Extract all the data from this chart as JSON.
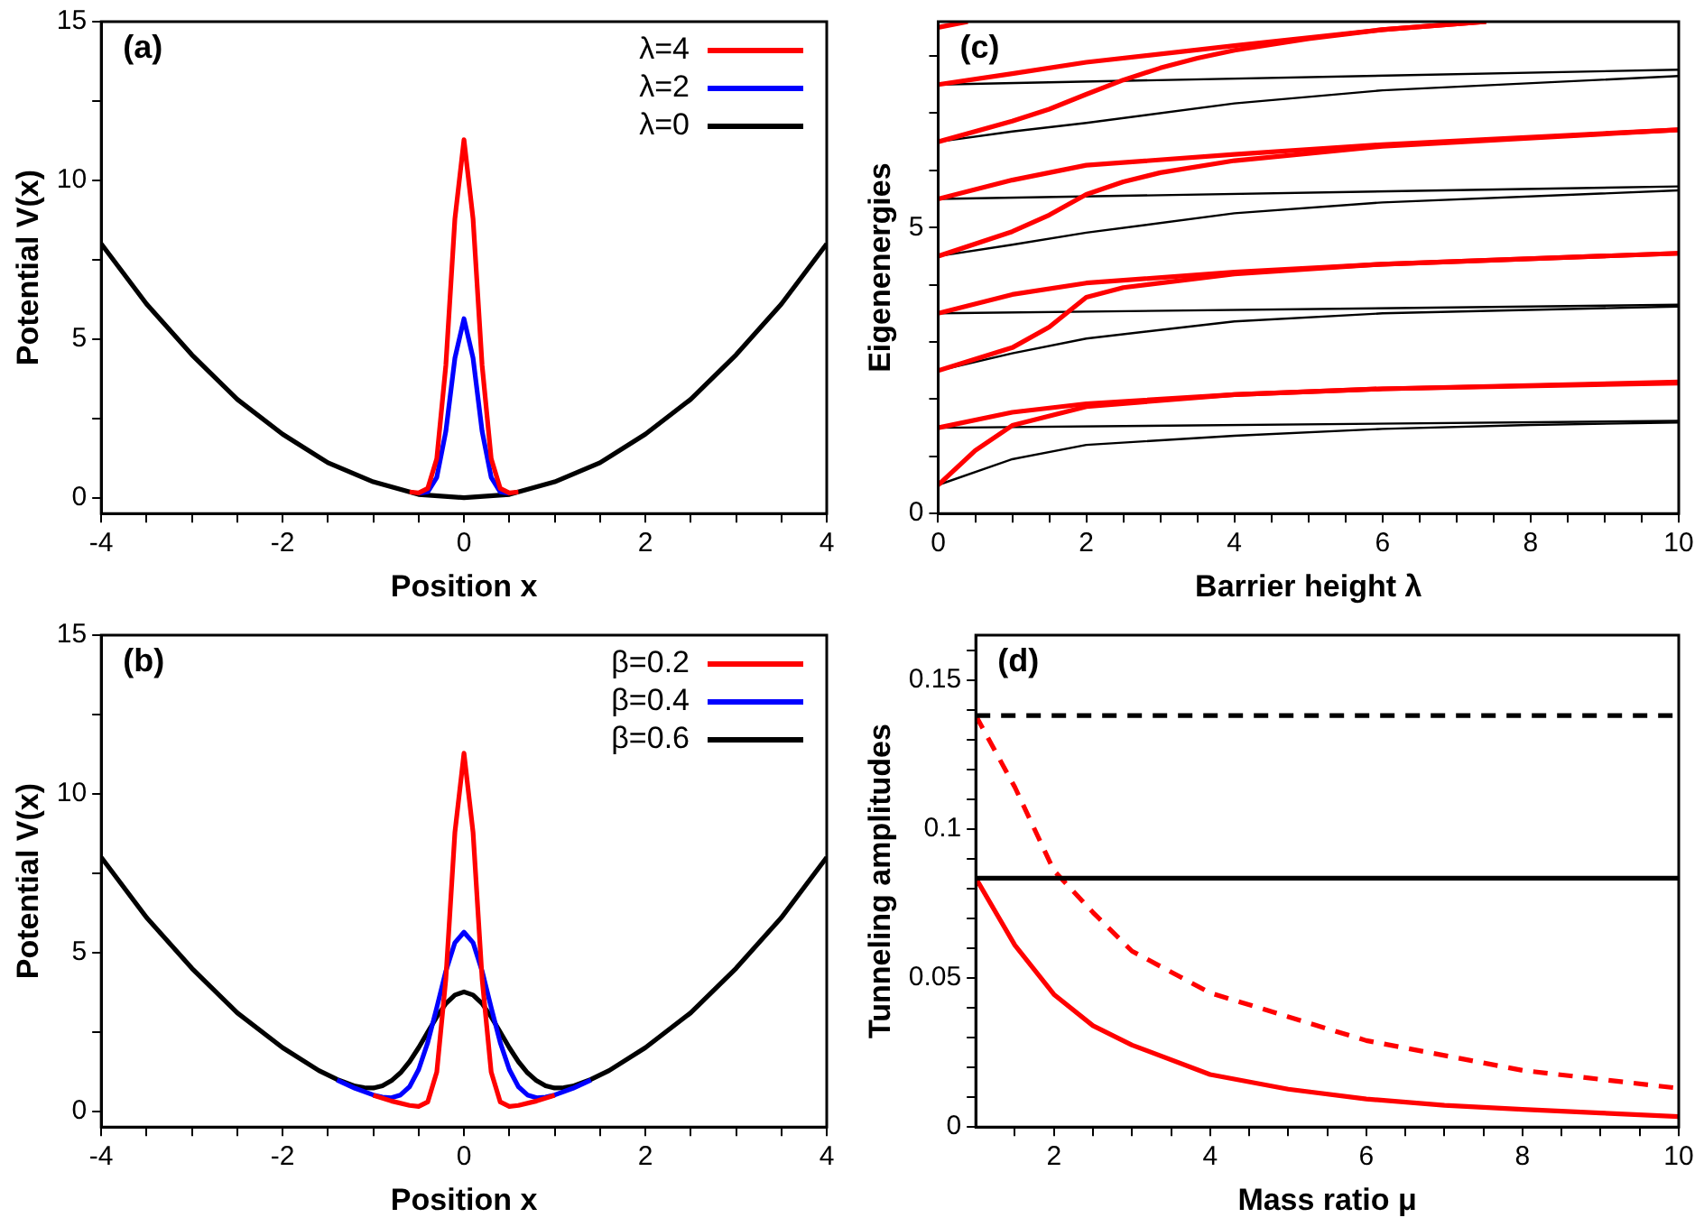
{
  "chart_data": [
    {
      "type": "line",
      "title": "(a)",
      "xlabel": "Position x",
      "ylabel": "Potential V(x)",
      "legend": "top right",
      "xlim": [
        -4,
        4
      ],
      "ylim": [
        -0.5,
        15
      ],
      "xticks": [
        -4,
        {
          "value": -3.5,
          "label": null
        },
        {
          "value": -3,
          "label": null
        },
        {
          "value": -2.5,
          "label": null
        },
        -2,
        {
          "value": -1.5,
          "label": null
        },
        {
          "value": -1,
          "label": null
        },
        {
          "value": -0.5,
          "label": null
        },
        0,
        {
          "value": 0.5,
          "label": null
        },
        {
          "value": 1,
          "label": null
        },
        {
          "value": 1.5,
          "label": null
        },
        2,
        {
          "value": 2.5,
          "label": null
        },
        {
          "value": 3,
          "label": null
        },
        {
          "value": 3.5,
          "label": null
        },
        4
      ],
      "yticks": [
        0,
        {
          "value": 2.5,
          "label": null
        },
        5,
        {
          "value": 7.5,
          "label": null
        },
        10,
        {
          "value": 12.5,
          "label": null
        },
        15
      ],
      "series": [
        {
          "name": "λ=4",
          "color": "#ff0000",
          "x": [
            -0.6,
            -0.5,
            -0.4,
            -0.3,
            -0.2,
            -0.1,
            0,
            0.1,
            0.2,
            0.3,
            0.4,
            0.5,
            0.6
          ],
          "values": [
            0.18,
            0.15,
            0.29,
            1.23,
            4.17,
            8.79,
            11.28,
            8.79,
            4.17,
            1.23,
            0.29,
            0.15,
            0.18
          ]
        },
        {
          "name": "λ=2",
          "color": "#0000ff",
          "x": [
            -0.5,
            -0.4,
            -0.3,
            -0.2,
            -0.1,
            0,
            0.1,
            0.2,
            0.3,
            0.4,
            0.5
          ],
          "values": [
            0.14,
            0.18,
            0.64,
            2.09,
            4.4,
            5.64,
            4.4,
            2.09,
            0.64,
            0.18,
            0.14
          ]
        },
        {
          "name": "λ=0",
          "color": "#000000",
          "x": [
            -4,
            -3.5,
            -3,
            -2.5,
            -2,
            -1.5,
            -1,
            -0.5,
            0,
            0.5,
            1,
            1.5,
            2,
            2.5,
            3,
            3.5,
            4
          ],
          "values": [
            8,
            6.1,
            4.5,
            3.1,
            2,
            1.1,
            0.5,
            0.1,
            0,
            0.1,
            0.5,
            1.1,
            2,
            3.1,
            4.5,
            6.1,
            8
          ]
        }
      ]
    },
    {
      "type": "line",
      "title": "(c)",
      "xlabel": "Barrier height λ",
      "ylabel": "Eigenenergies",
      "xlim": [
        0,
        10
      ],
      "ylim": [
        0,
        8.6
      ],
      "xticks": [
        0,
        {
          "value": 0.5,
          "label": null
        },
        {
          "value": 1,
          "label": null
        },
        {
          "value": 1.5,
          "label": null
        },
        2,
        {
          "value": 2.5,
          "label": null
        },
        {
          "value": 3,
          "label": null
        },
        {
          "value": 3.5,
          "label": null
        },
        4,
        {
          "value": 4.5,
          "label": null
        },
        {
          "value": 5,
          "label": null
        },
        {
          "value": 5.5,
          "label": null
        },
        6,
        {
          "value": 6.5,
          "label": null
        },
        {
          "value": 7,
          "label": null
        },
        {
          "value": 7.5,
          "label": null
        },
        8,
        {
          "value": 8.5,
          "label": null
        },
        {
          "value": 9,
          "label": null
        },
        {
          "value": 9.5,
          "label": null
        },
        10
      ],
      "yticks": [
        0,
        {
          "value": 1,
          "label": null
        },
        {
          "value": 2,
          "label": null
        },
        {
          "value": 3,
          "label": null
        },
        {
          "value": 4,
          "label": null
        },
        5,
        {
          "value": 6,
          "label": null
        },
        {
          "value": 7,
          "label": null
        },
        {
          "value": 8,
          "label": null
        }
      ],
      "series": [
        {
          "color": "#ff0000",
          "x": [
            0,
            0.5,
            1,
            2,
            4,
            6,
            10
          ],
          "values": [
            0.5,
            1.1,
            1.54,
            1.87,
            2.08,
            2.18,
            2.28
          ]
        },
        {
          "color": "#ff0000",
          "x": [
            0,
            1,
            2,
            4,
            6,
            10
          ],
          "values": [
            1.5,
            1.77,
            1.92,
            2.08,
            2.18,
            2.3
          ]
        },
        {
          "color": "#ff0000",
          "x": [
            0,
            1,
            1.5,
            2,
            2.5,
            4,
            6,
            10
          ],
          "values": [
            2.5,
            2.9,
            3.26,
            3.78,
            3.95,
            4.19,
            4.36,
            4.55
          ]
        },
        {
          "color": "#ff0000",
          "x": [
            0,
            1,
            2,
            4,
            6,
            10
          ],
          "values": [
            3.5,
            3.83,
            4.03,
            4.22,
            4.36,
            4.55
          ]
        },
        {
          "color": "#ff0000",
          "x": [
            0,
            1,
            1.5,
            2,
            2.5,
            3,
            4,
            6,
            10
          ],
          "values": [
            4.5,
            4.93,
            5.22,
            5.58,
            5.8,
            5.96,
            6.17,
            6.42,
            6.71
          ]
        },
        {
          "color": "#ff0000",
          "x": [
            0,
            1,
            2,
            4,
            6,
            10
          ],
          "values": [
            5.5,
            5.83,
            6.09,
            6.28,
            6.45,
            6.71
          ]
        },
        {
          "color": "#ff0000",
          "x": [
            0,
            1,
            1.5,
            2,
            2.5,
            3,
            3.5,
            4,
            5,
            6,
            7.4
          ],
          "values": [
            6.5,
            6.86,
            7.07,
            7.33,
            7.58,
            7.79,
            7.96,
            8.1,
            8.3,
            8.46,
            8.6
          ]
        },
        {
          "color": "#ff0000",
          "x": [
            0,
            1,
            2,
            4,
            6,
            7.4
          ],
          "values": [
            7.5,
            7.69,
            7.89,
            8.18,
            8.46,
            8.6
          ]
        },
        {
          "color": "#ff0000",
          "x": [
            0,
            0.4
          ],
          "values": [
            8.5,
            8.6
          ]
        },
        {
          "color": "#000000",
          "x": [
            0,
            1,
            2,
            4,
            6,
            8,
            10
          ],
          "values": [
            0.5,
            0.95,
            1.2,
            1.36,
            1.48,
            1.55,
            1.59
          ]
        },
        {
          "color": "#000000",
          "x": [
            0,
            10
          ],
          "values": [
            1.5,
            1.62
          ]
        },
        {
          "color": "#000000",
          "x": [
            0,
            1,
            2,
            4,
            6,
            10
          ],
          "values": [
            2.5,
            2.8,
            3.06,
            3.36,
            3.5,
            3.62
          ]
        },
        {
          "color": "#000000",
          "x": [
            0,
            10
          ],
          "values": [
            3.5,
            3.65
          ]
        },
        {
          "color": "#000000",
          "x": [
            0,
            1,
            2,
            4,
            6,
            10
          ],
          "values": [
            4.5,
            4.7,
            4.91,
            5.25,
            5.44,
            5.65
          ]
        },
        {
          "color": "#000000",
          "x": [
            0,
            10
          ],
          "values": [
            5.5,
            5.72
          ]
        },
        {
          "color": "#000000",
          "x": [
            0,
            1,
            2,
            4,
            6,
            10
          ],
          "values": [
            6.5,
            6.68,
            6.83,
            7.17,
            7.4,
            7.65
          ]
        },
        {
          "color": "#000000",
          "x": [
            0,
            10
          ],
          "values": [
            7.5,
            7.76
          ]
        }
      ]
    },
    {
      "type": "line",
      "title": "(b)",
      "xlabel": "Position x",
      "ylabel": "Potential V(x)",
      "legend": "top right",
      "xlim": [
        -4,
        4
      ],
      "ylim": [
        -0.5,
        15
      ],
      "xticks": [
        -4,
        {
          "value": -3.5,
          "label": null
        },
        {
          "value": -3,
          "label": null
        },
        {
          "value": -2.5,
          "label": null
        },
        -2,
        {
          "value": -1.5,
          "label": null
        },
        {
          "value": -1,
          "label": null
        },
        {
          "value": -0.5,
          "label": null
        },
        0,
        {
          "value": 0.5,
          "label": null
        },
        {
          "value": 1,
          "label": null
        },
        {
          "value": 1.5,
          "label": null
        },
        2,
        {
          "value": 2.5,
          "label": null
        },
        {
          "value": 3,
          "label": null
        },
        {
          "value": 3.5,
          "label": null
        },
        4
      ],
      "yticks": [
        0,
        {
          "value": 2.5,
          "label": null
        },
        5,
        {
          "value": 7.5,
          "label": null
        },
        10,
        {
          "value": 12.5,
          "label": null
        },
        15
      ],
      "series": [
        {
          "name": "β=0.2",
          "color": "#ff0000",
          "x": [
            -1,
            -0.8,
            -0.6,
            -0.5,
            -0.4,
            -0.3,
            -0.2,
            -0.1,
            0,
            0.1,
            0.2,
            0.3,
            0.4,
            0.5,
            0.6,
            0.8,
            1
          ],
          "values": [
            0.5,
            0.32,
            0.18,
            0.15,
            0.29,
            1.23,
            4.17,
            8.79,
            11.28,
            8.79,
            4.17,
            1.23,
            0.29,
            0.15,
            0.18,
            0.32,
            0.5
          ]
        },
        {
          "name": "β=0.4",
          "color": "#0000ff",
          "x": [
            -1.4,
            -1.2,
            -1,
            -0.9,
            -0.8,
            -0.7,
            -0.6,
            -0.5,
            -0.4,
            -0.3,
            -0.2,
            -0.1,
            0,
            0.1,
            0.2,
            0.3,
            0.4,
            0.5,
            0.6,
            0.7,
            0.8,
            0.9,
            1,
            1.2,
            1.4
          ],
          "values": [
            0.98,
            0.72,
            0.51,
            0.44,
            0.42,
            0.51,
            0.77,
            1.31,
            2.16,
            3.26,
            4.41,
            5.31,
            5.64,
            5.31,
            4.41,
            3.26,
            2.16,
            1.31,
            0.77,
            0.51,
            0.42,
            0.44,
            0.51,
            0.72,
            0.98
          ]
        },
        {
          "name": "β=0.6",
          "color": "#000000",
          "x": [
            -4,
            -3.5,
            -3,
            -2.5,
            -2,
            -1.6,
            -1.4,
            -1.2,
            -1.1,
            -1,
            -0.9,
            -0.8,
            -0.7,
            -0.6,
            -0.5,
            -0.4,
            -0.3,
            -0.2,
            -0.1,
            0,
            0.1,
            0.2,
            0.3,
            0.4,
            0.5,
            0.6,
            0.7,
            0.8,
            0.9,
            1,
            1.1,
            1.2,
            1.4,
            1.6,
            2,
            2.5,
            3,
            3.5,
            4
          ],
          "values": [
            8,
            6.1,
            4.5,
            3.1,
            2,
            1.28,
            1,
            0.79,
            0.74,
            0.73,
            0.8,
            0.96,
            1.21,
            1.56,
            2,
            2.49,
            2.97,
            3.39,
            3.66,
            3.76,
            3.66,
            3.39,
            2.97,
            2.49,
            2,
            1.56,
            1.21,
            0.96,
            0.8,
            0.73,
            0.74,
            0.79,
            1,
            1.28,
            2,
            3.1,
            4.5,
            6.1,
            8
          ]
        }
      ]
    },
    {
      "type": "line",
      "title": "(d)",
      "xlabel": "Mass ratio μ",
      "ylabel": "Tunneling amplitudes",
      "xlim": [
        1,
        10
      ],
      "ylim": [
        0,
        0.165
      ],
      "xticks": [
        {
          "value": 1.5,
          "label": null
        },
        2,
        {
          "value": 2.5,
          "label": null
        },
        {
          "value": 3,
          "label": null
        },
        {
          "value": 3.5,
          "label": null
        },
        4,
        {
          "value": 4.5,
          "label": null
        },
        {
          "value": 5,
          "label": null
        },
        {
          "value": 5.5,
          "label": null
        },
        6,
        {
          "value": 6.5,
          "label": null
        },
        {
          "value": 7,
          "label": null
        },
        {
          "value": 7.5,
          "label": null
        },
        8,
        {
          "value": 8.5,
          "label": null
        },
        {
          "value": 9,
          "label": null
        },
        {
          "value": 9.5,
          "label": null
        },
        10
      ],
      "yticks": [
        0,
        {
          "value": 0.01,
          "label": null
        },
        {
          "value": 0.02,
          "label": null
        },
        {
          "value": 0.03,
          "label": null
        },
        {
          "value": 0.04,
          "label": null
        },
        0.05,
        {
          "value": 0.06,
          "label": null
        },
        {
          "value": 0.07,
          "label": null
        },
        {
          "value": 0.08,
          "label": null
        },
        {
          "value": 0.09,
          "label": null
        },
        0.1,
        {
          "value": 0.11,
          "label": null
        },
        {
          "value": 0.12,
          "label": null
        },
        {
          "value": 0.13,
          "label": null
        },
        {
          "value": 0.14,
          "label": null
        },
        0.15,
        {
          "value": 0.16,
          "label": null
        }
      ],
      "series": [
        {
          "color": "#000000",
          "line_style": "dashed",
          "x": [
            1,
            10
          ],
          "values": [
            0.138,
            0.138
          ]
        },
        {
          "color": "#000000",
          "x": [
            1,
            10
          ],
          "values": [
            0.0835,
            0.0835
          ]
        },
        {
          "color": "#ff0000",
          "line_style": "dashed",
          "x": [
            1,
            1.5,
            2,
            2.5,
            3,
            4,
            5,
            6,
            7,
            8,
            9,
            10
          ],
          "values": [
            0.138,
            0.114,
            0.086,
            0.072,
            0.059,
            0.045,
            0.037,
            0.029,
            0.024,
            0.019,
            0.016,
            0.013
          ]
        },
        {
          "color": "#ff0000",
          "x": [
            1,
            1.5,
            2,
            2.5,
            3,
            4,
            5,
            6,
            7,
            8,
            9,
            10
          ],
          "values": [
            0.0835,
            0.061,
            0.0445,
            0.034,
            0.0275,
            0.0176,
            0.0127,
            0.0094,
            0.0073,
            0.0059,
            0.0047,
            0.0035
          ]
        }
      ]
    }
  ]
}
